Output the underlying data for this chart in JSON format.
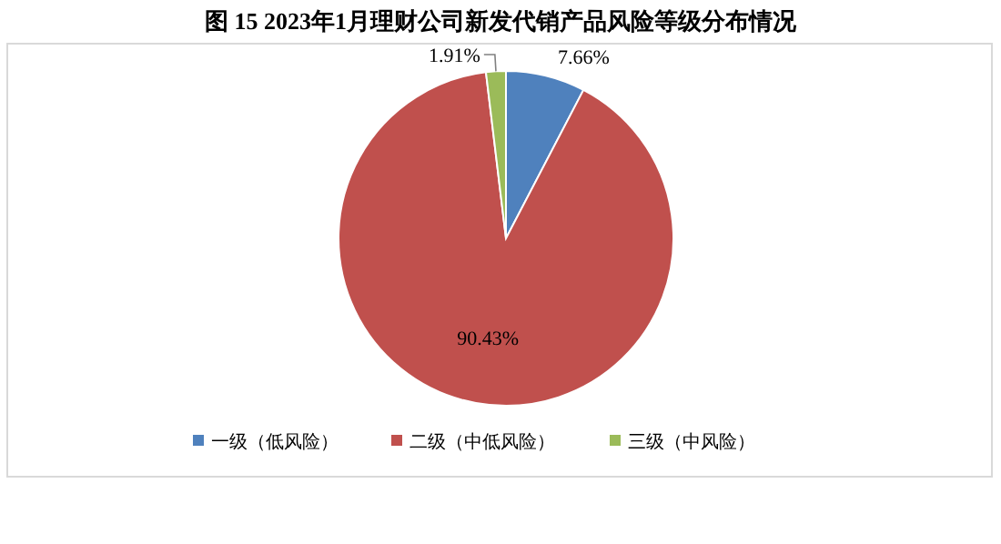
{
  "chart_data": {
    "type": "pie",
    "title": "图 15 2023年1月理财公司新发代销产品风险等级分布情况",
    "categories": [
      "一级（低风险）",
      "二级（中低风险）",
      "三级（中风险）"
    ],
    "values": [
      7.66,
      90.43,
      1.91
    ],
    "colors": [
      "#4f81bd",
      "#c0504d",
      "#9bbb59"
    ],
    "value_labels": [
      "7.66%",
      "90.43%",
      "1.91%"
    ],
    "legend": "bottom"
  }
}
